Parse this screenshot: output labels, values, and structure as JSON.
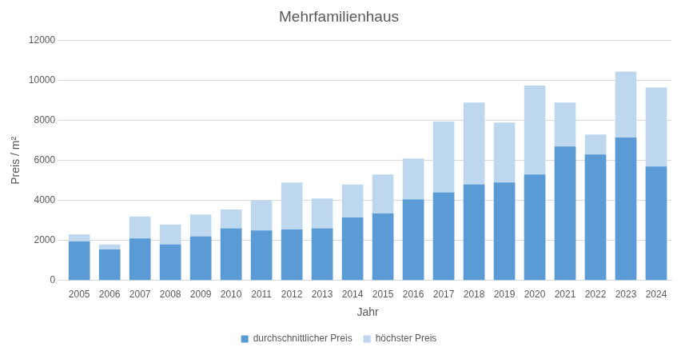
{
  "chart_data": {
    "type": "bar",
    "title": "Mehrfamilienhaus",
    "x_label": "Jahr",
    "y_label": "Preis / m²",
    "categories": [
      "2005",
      "2006",
      "2007",
      "2008",
      "2009",
      "2010",
      "2011",
      "2012",
      "2013",
      "2014",
      "2015",
      "2016",
      "2017",
      "2018",
      "2019",
      "2020",
      "2021",
      "2022",
      "2023",
      "2024"
    ],
    "series": [
      {
        "name": "höchster Preis",
        "color": "#bdd7ee",
        "values": [
          2300,
          1800,
          3200,
          2800,
          3300,
          3550,
          4000,
          4900,
          4100,
          4800,
          5300,
          6100,
          7950,
          8900,
          7900,
          9750,
          8900,
          7300,
          10450,
          9650
        ]
      },
      {
        "name": "durchschnittlicher Preis",
        "color": "#5b9bd5",
        "values": [
          1950,
          1550,
          2100,
          1800,
          2200,
          2600,
          2500,
          2550,
          2600,
          3150,
          3350,
          4050,
          4400,
          4800,
          4900,
          5300,
          6700,
          6300,
          7150,
          5700
        ]
      }
    ],
    "ylim": [
      0,
      12000
    ],
    "yticks": [
      0,
      2000,
      4000,
      6000,
      8000,
      10000,
      12000
    ],
    "grid": true,
    "legend": "bottom"
  }
}
